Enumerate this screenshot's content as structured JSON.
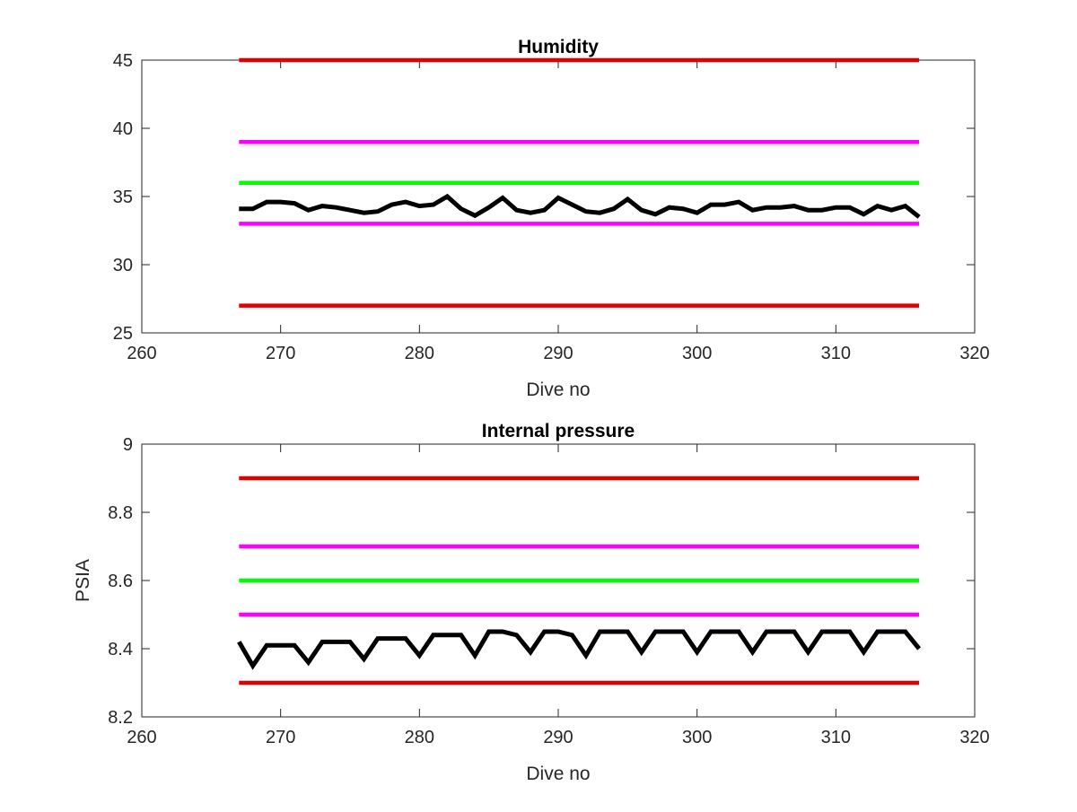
{
  "chart_data": [
    {
      "type": "line",
      "title": "Humidity",
      "xlabel": "Dive no",
      "ylabel": "",
      "xlim": [
        260,
        320
      ],
      "ylim": [
        25,
        45
      ],
      "xticks": [
        260,
        270,
        280,
        290,
        300,
        310,
        320
      ],
      "yticks": [
        25,
        30,
        35,
        40,
        45
      ],
      "grid": false,
      "series": [
        {
          "color": "#e00000",
          "x": [
            267,
            316
          ],
          "values": [
            45,
            45
          ]
        },
        {
          "color": "#ff00ff",
          "x": [
            267,
            316
          ],
          "values": [
            39,
            39
          ]
        },
        {
          "color": "#00ff00",
          "x": [
            267,
            316
          ],
          "values": [
            36,
            36
          ]
        },
        {
          "color": "#ff00ff",
          "x": [
            267,
            316
          ],
          "values": [
            33,
            33
          ]
        },
        {
          "color": "#e00000",
          "x": [
            267,
            316
          ],
          "values": [
            27,
            27
          ]
        },
        {
          "color": "#000000",
          "x": [
            267,
            268,
            269,
            270,
            271,
            272,
            273,
            274,
            275,
            276,
            277,
            278,
            279,
            280,
            281,
            282,
            283,
            284,
            285,
            286,
            287,
            288,
            289,
            290,
            291,
            292,
            293,
            294,
            295,
            296,
            297,
            298,
            299,
            300,
            301,
            302,
            303,
            304,
            305,
            306,
            307,
            308,
            309,
            310,
            311,
            312,
            313,
            314,
            315,
            316
          ],
          "values": [
            34.1,
            34.1,
            34.6,
            34.6,
            34.5,
            34.0,
            34.3,
            34.2,
            34.0,
            33.8,
            33.9,
            34.4,
            34.6,
            34.3,
            34.4,
            35.0,
            34.1,
            33.6,
            34.2,
            34.9,
            34.0,
            33.8,
            34.0,
            34.9,
            34.4,
            33.9,
            33.8,
            34.1,
            34.8,
            34.0,
            33.7,
            34.2,
            34.1,
            33.8,
            34.4,
            34.4,
            34.6,
            34.0,
            34.2,
            34.2,
            34.3,
            34.0,
            34.0,
            34.2,
            34.2,
            33.7,
            34.3,
            34.0,
            34.3,
            33.5
          ]
        }
      ]
    },
    {
      "type": "line",
      "title": "Internal pressure",
      "xlabel": "Dive no",
      "ylabel": "PSIA",
      "xlim": [
        260,
        320
      ],
      "ylim": [
        8.2,
        9
      ],
      "xticks": [
        260,
        270,
        280,
        290,
        300,
        310,
        320
      ],
      "yticks": [
        8.2,
        8.4,
        8.6,
        8.8,
        9
      ],
      "ytick_labels": [
        "8.2",
        "8.4",
        "8.6",
        "8.8",
        "9"
      ],
      "grid": false,
      "series": [
        {
          "color": "#e00000",
          "x": [
            267,
            316
          ],
          "values": [
            8.9,
            8.9
          ]
        },
        {
          "color": "#ff00ff",
          "x": [
            267,
            316
          ],
          "values": [
            8.7,
            8.7
          ]
        },
        {
          "color": "#00ff00",
          "x": [
            267,
            316
          ],
          "values": [
            8.6,
            8.6
          ]
        },
        {
          "color": "#ff00ff",
          "x": [
            267,
            316
          ],
          "values": [
            8.5,
            8.5
          ]
        },
        {
          "color": "#e00000",
          "x": [
            267,
            316
          ],
          "values": [
            8.3,
            8.3
          ]
        },
        {
          "color": "#000000",
          "x": [
            267,
            268,
            269,
            270,
            271,
            272,
            273,
            274,
            275,
            276,
            277,
            278,
            279,
            280,
            281,
            282,
            283,
            284,
            285,
            286,
            287,
            288,
            289,
            290,
            291,
            292,
            293,
            294,
            295,
            296,
            297,
            298,
            299,
            300,
            301,
            302,
            303,
            304,
            305,
            306,
            307,
            308,
            309,
            310,
            311,
            312,
            313,
            314,
            315,
            316
          ],
          "values": [
            8.42,
            8.35,
            8.41,
            8.41,
            8.41,
            8.36,
            8.42,
            8.42,
            8.42,
            8.37,
            8.43,
            8.43,
            8.43,
            8.38,
            8.44,
            8.44,
            8.44,
            8.38,
            8.45,
            8.45,
            8.44,
            8.39,
            8.45,
            8.45,
            8.44,
            8.38,
            8.45,
            8.45,
            8.45,
            8.39,
            8.45,
            8.45,
            8.45,
            8.39,
            8.45,
            8.45,
            8.45,
            8.39,
            8.45,
            8.45,
            8.45,
            8.39,
            8.45,
            8.45,
            8.45,
            8.39,
            8.45,
            8.45,
            8.45,
            8.4
          ]
        }
      ]
    }
  ]
}
